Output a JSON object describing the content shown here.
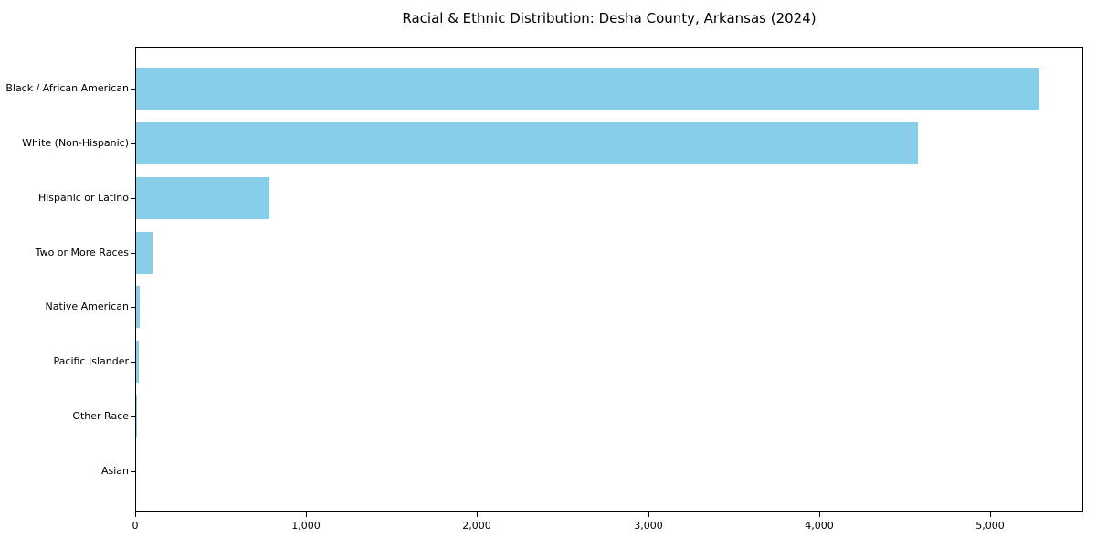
{
  "chart_data": {
    "type": "bar",
    "orientation": "horizontal",
    "title": "Racial & Ethnic Distribution: Desha County, Arkansas (2024)",
    "categories": [
      "Black / African American",
      "White (Non-Hispanic)",
      "Hispanic or Latino",
      "Two or More Races",
      "Native American",
      "Pacific Islander",
      "Other Race",
      "Asian"
    ],
    "values": [
      5280,
      4570,
      780,
      95,
      24,
      15,
      5,
      2
    ],
    "xlim": [
      0,
      5544
    ],
    "xticks": [
      0,
      1000,
      2000,
      3000,
      4000,
      5000
    ],
    "xtick_labels": [
      "0",
      "1,000",
      "2,000",
      "3,000",
      "4,000",
      "5,000"
    ],
    "xlabel": "",
    "ylabel": "",
    "bar_color": "#87CEEB",
    "axis_color": "#000000",
    "text_color": "#000000",
    "background_color": "#FFFFFF",
    "grid": false,
    "legend_position": "none"
  }
}
